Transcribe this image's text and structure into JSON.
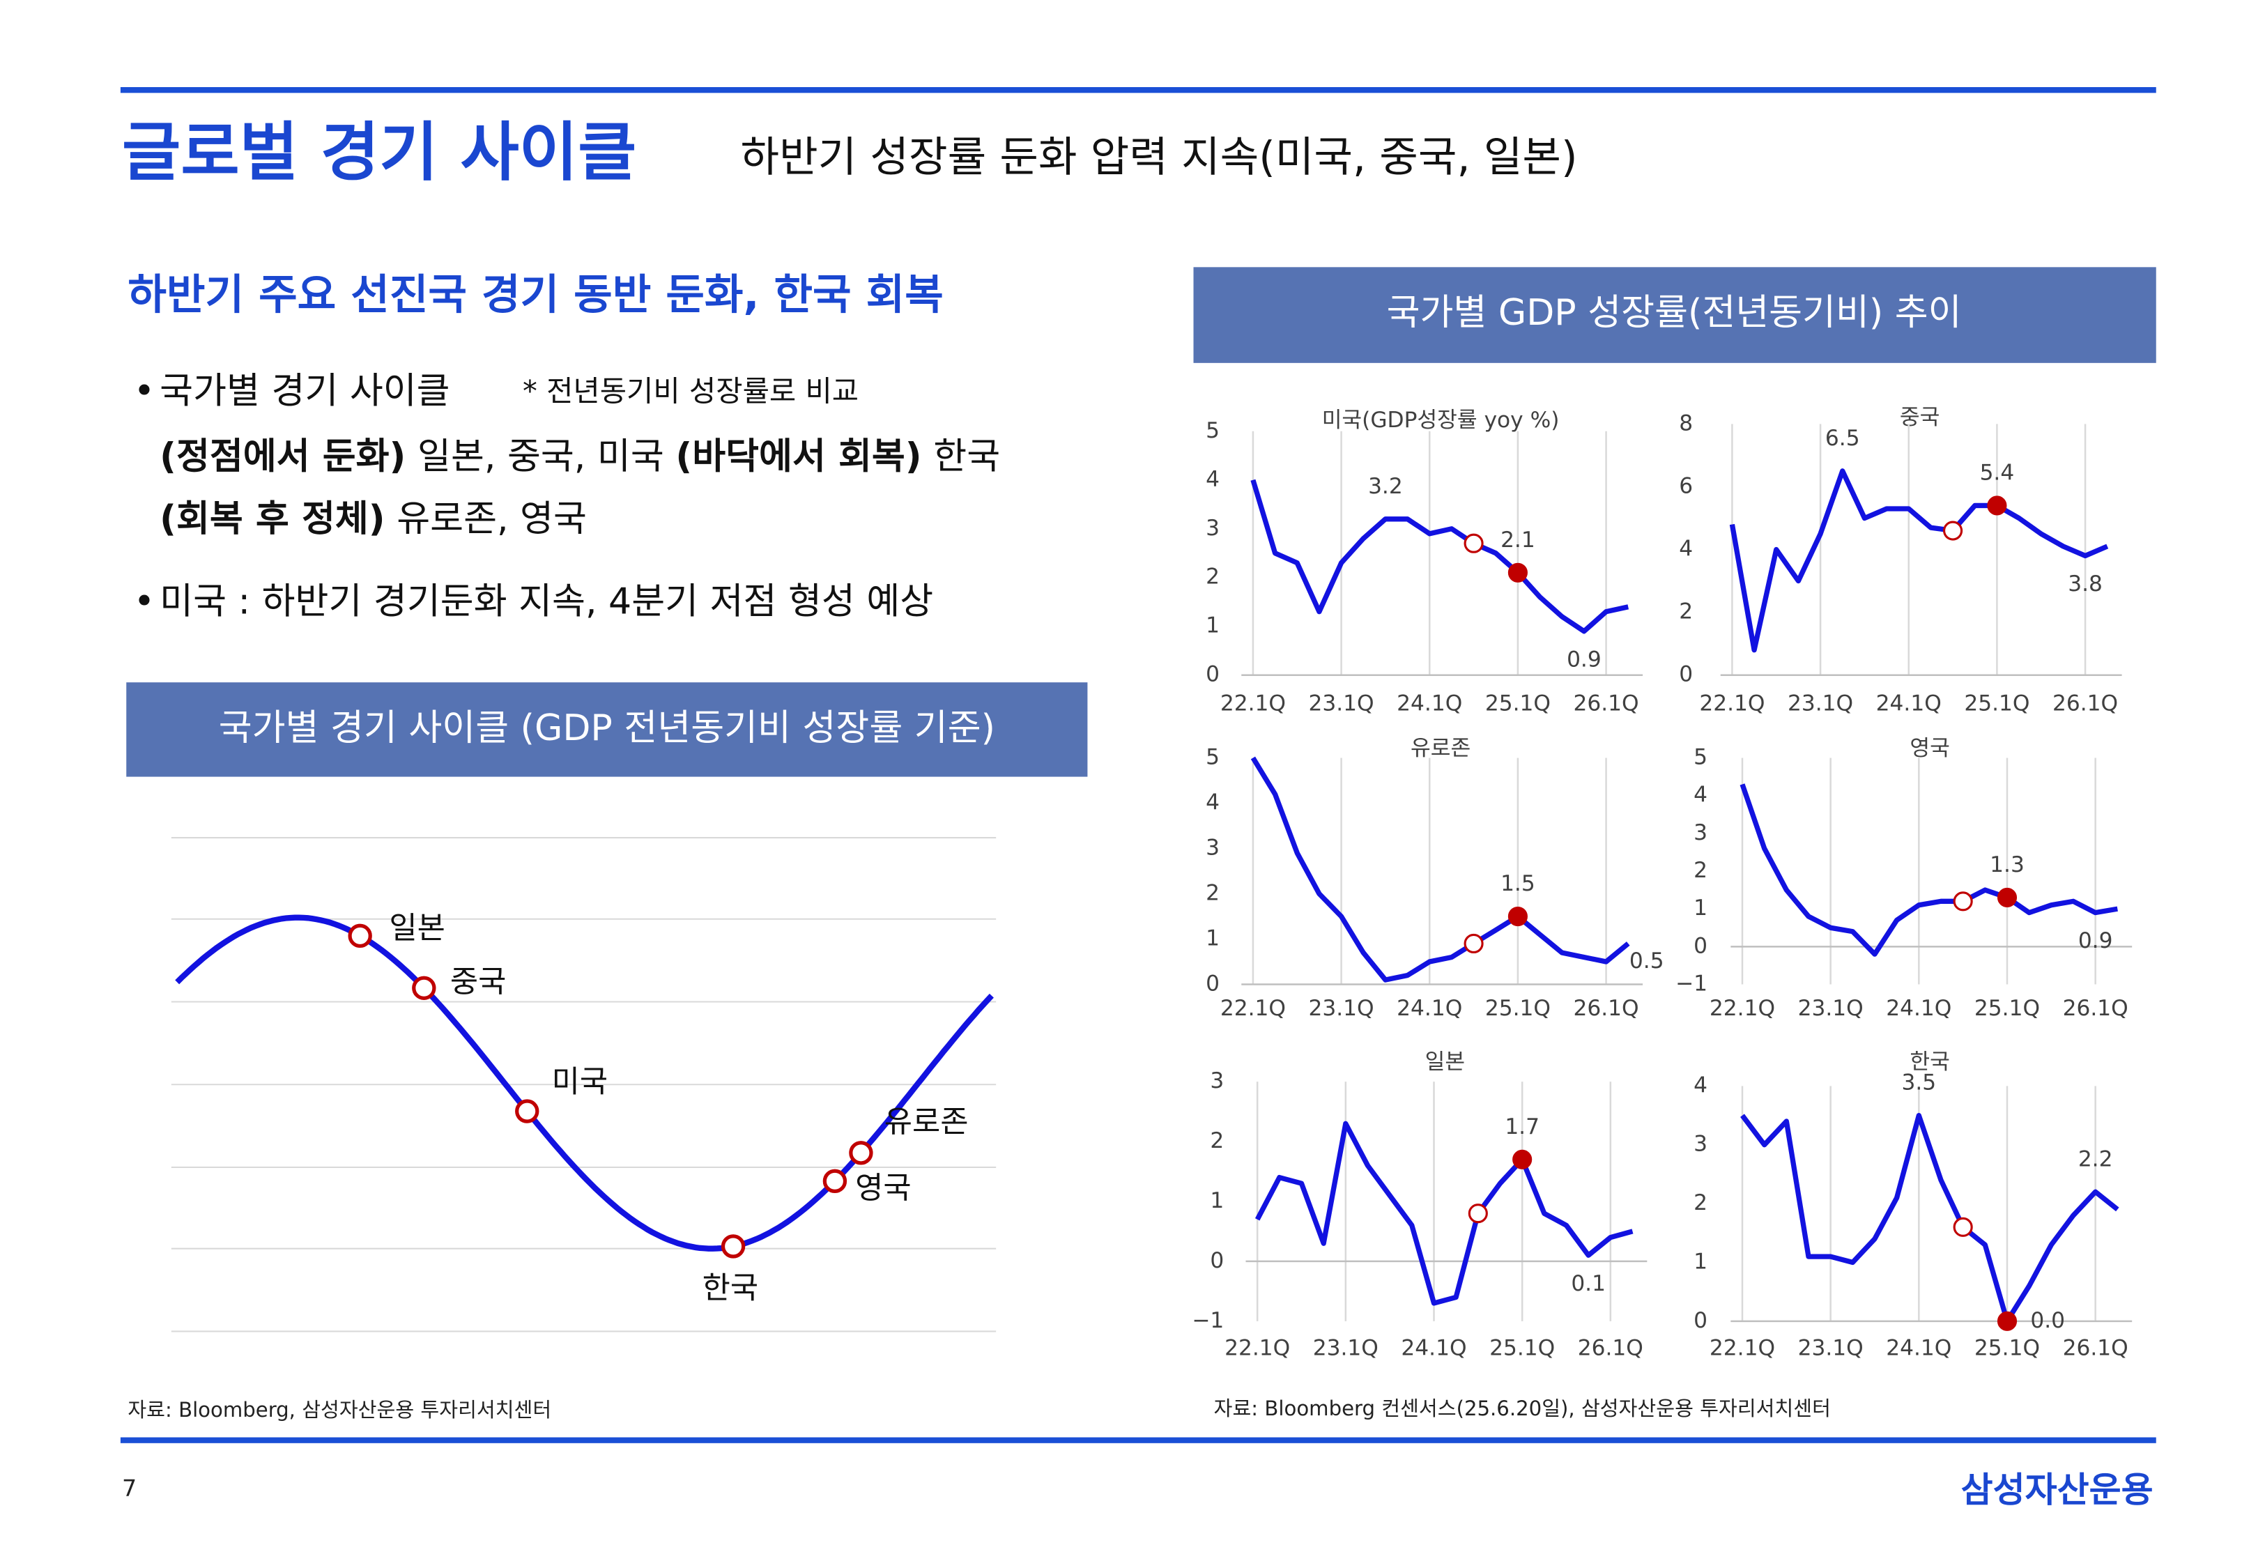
{
  "header": {
    "title": "글로벌 경기 사이클",
    "subtitle": "하반기 성장률 둔화 압력 지속(미국, 중국, 일본)"
  },
  "left": {
    "heading": "하반기 주요 선진국 경기 동반 둔화, 한국 회복",
    "bullet1": "국가별 경기 사이클",
    "note": "* 전년동기비 성장률로 비교",
    "line2": [
      "(정점에서 둔화)",
      "일본, 중국, 미국",
      "(바닥에서 회복)",
      "한국"
    ],
    "line3": [
      "(회복 후 정체)",
      "유로존, 영국"
    ],
    "bullet2": "미국 : 하반기 경기둔화 지속, 4분기 저점 형성 예상",
    "banner": "국가별 경기 사이클 (GDP 전년동기비 성장률 기준)",
    "cycle_points": [
      "일본",
      "중국",
      "미국",
      "한국",
      "영국",
      "유로존"
    ],
    "source": "자료: Bloomberg, 삼성자산운용 투자리서치센터"
  },
  "right": {
    "banner": "국가별 GDP 성장률(전년동기비) 추이",
    "source": "자료: Bloomberg 컨센서스(25.6.20일), 삼성자산운용 투자리서치센터"
  },
  "chart_data": [
    {
      "type": "line",
      "title": "미국(GDP성장률 yoy %)",
      "color": "#1212e0",
      "marker_color": "#c00000",
      "hollow_marker": 10,
      "filled_marker": 12,
      "categories": [
        "22.1Q",
        null,
        null,
        null,
        "23.1Q",
        null,
        null,
        null,
        "24.1Q",
        null,
        null,
        null,
        "25.1Q",
        null,
        null,
        null,
        "26.1Q",
        null
      ],
      "values": [
        4.0,
        2.5,
        2.3,
        1.3,
        2.3,
        2.8,
        3.2,
        3.2,
        2.9,
        3.0,
        2.7,
        2.5,
        2.1,
        1.6,
        1.2,
        0.9,
        1.3,
        1.4
      ],
      "value_labels": [
        null,
        null,
        null,
        null,
        null,
        null,
        "3.2",
        null,
        null,
        null,
        null,
        null,
        "2.1",
        null,
        null,
        "0.9",
        null,
        null
      ],
      "ylim": [
        0,
        5
      ],
      "yticks": [
        0,
        1,
        2,
        3,
        4,
        5
      ],
      "grid": true
    },
    {
      "type": "line",
      "title": "중국",
      "color": "#1212e0",
      "marker_color": "#c00000",
      "hollow_marker": 10,
      "filled_marker": 12,
      "categories": [
        "22.1Q",
        null,
        null,
        null,
        "23.1Q",
        null,
        null,
        null,
        "24.1Q",
        null,
        null,
        null,
        "25.1Q",
        null,
        null,
        null,
        "26.1Q",
        null
      ],
      "values": [
        4.8,
        0.8,
        4.0,
        3.0,
        4.5,
        6.5,
        5.0,
        5.3,
        5.3,
        4.7,
        4.6,
        5.4,
        5.4,
        5.0,
        4.5,
        4.1,
        3.8,
        4.1
      ],
      "value_labels": [
        null,
        null,
        null,
        null,
        null,
        "6.5",
        null,
        null,
        null,
        null,
        null,
        null,
        "5.4",
        null,
        null,
        null,
        "3.8",
        null
      ],
      "ylim": [
        0,
        8
      ],
      "yticks": [
        0,
        2,
        4,
        6,
        8
      ],
      "grid": true
    },
    {
      "type": "line",
      "title": "유로존",
      "color": "#1212e0",
      "marker_color": "#c00000",
      "hollow_marker": 10,
      "filled_marker": 12,
      "categories": [
        "22.1Q",
        null,
        null,
        null,
        "23.1Q",
        null,
        null,
        null,
        "24.1Q",
        null,
        null,
        null,
        "25.1Q",
        null,
        null,
        null,
        "26.1Q",
        null
      ],
      "values": [
        5.0,
        4.2,
        2.9,
        2.0,
        1.5,
        0.7,
        0.1,
        0.2,
        0.5,
        0.6,
        0.9,
        1.2,
        1.5,
        1.1,
        0.7,
        0.6,
        0.5,
        0.9
      ],
      "value_labels": [
        null,
        null,
        null,
        null,
        null,
        null,
        null,
        null,
        null,
        null,
        null,
        null,
        "1.5",
        null,
        null,
        null,
        "0.5",
        null
      ],
      "ylim": [
        0,
        5
      ],
      "yticks": [
        0,
        1,
        2,
        3,
        4,
        5
      ],
      "grid": true
    },
    {
      "type": "line",
      "title": "영국",
      "color": "#1212e0",
      "marker_color": "#c00000",
      "hollow_marker": 10,
      "filled_marker": 12,
      "categories": [
        "22.1Q",
        null,
        null,
        null,
        "23.1Q",
        null,
        null,
        null,
        "24.1Q",
        null,
        null,
        null,
        "25.1Q",
        null,
        null,
        null,
        "26.1Q",
        null
      ],
      "values": [
        4.3,
        2.6,
        1.5,
        0.8,
        0.5,
        0.4,
        -0.2,
        0.7,
        1.1,
        1.2,
        1.2,
        1.5,
        1.3,
        0.9,
        1.1,
        1.2,
        0.9,
        1.0
      ],
      "value_labels": [
        null,
        null,
        null,
        null,
        null,
        null,
        null,
        null,
        null,
        null,
        null,
        null,
        "1.3",
        null,
        null,
        null,
        "0.9",
        null
      ],
      "ylim": [
        -1,
        5
      ],
      "yticks": [
        {
          "value": -1,
          "label": "−1"
        },
        0,
        1,
        2,
        3,
        4,
        5
      ],
      "grid": true
    },
    {
      "type": "line",
      "title": "일본",
      "color": "#1212e0",
      "marker_color": "#c00000",
      "hollow_marker": 10,
      "filled_marker": 12,
      "categories": [
        "22.1Q",
        null,
        null,
        null,
        "23.1Q",
        null,
        null,
        null,
        "24.1Q",
        null,
        null,
        null,
        "25.1Q",
        null,
        null,
        null,
        "26.1Q",
        null
      ],
      "values": [
        0.7,
        1.4,
        1.3,
        0.3,
        2.3,
        1.6,
        1.1,
        0.6,
        -0.7,
        -0.6,
        0.8,
        1.3,
        1.7,
        0.8,
        0.6,
        0.1,
        0.4,
        0.5
      ],
      "value_labels": [
        null,
        null,
        null,
        null,
        null,
        null,
        null,
        null,
        null,
        null,
        null,
        null,
        "1.7",
        null,
        null,
        "0.1",
        null,
        null
      ],
      "ylim": [
        -1,
        3
      ],
      "yticks": [
        {
          "value": -1,
          "label": "−1"
        },
        0,
        1,
        2,
        3
      ],
      "grid": true
    },
    {
      "type": "line",
      "title": "한국",
      "color": "#1212e0",
      "marker_color": "#c00000",
      "hollow_marker": 10,
      "filled_marker": 12,
      "categories": [
        "22.1Q",
        null,
        null,
        null,
        "23.1Q",
        null,
        null,
        null,
        "24.1Q",
        null,
        null,
        null,
        "25.1Q",
        null,
        null,
        null,
        "26.1Q",
        null
      ],
      "values": [
        3.5,
        3.0,
        3.4,
        1.1,
        1.1,
        1.0,
        1.4,
        2.1,
        3.5,
        2.4,
        1.6,
        1.3,
        0.0,
        0.6,
        1.3,
        1.8,
        2.2,
        1.9
      ],
      "value_labels": [
        null,
        null,
        null,
        null,
        null,
        null,
        null,
        null,
        "3.5",
        null,
        null,
        null,
        "0.0",
        null,
        null,
        null,
        "2.2",
        null
      ],
      "ylim": [
        0,
        4
      ],
      "yticks": [
        0,
        1,
        2,
        3,
        4
      ],
      "grid": true
    }
  ],
  "footer": {
    "page": "7",
    "logo": "삼성자산운용"
  }
}
